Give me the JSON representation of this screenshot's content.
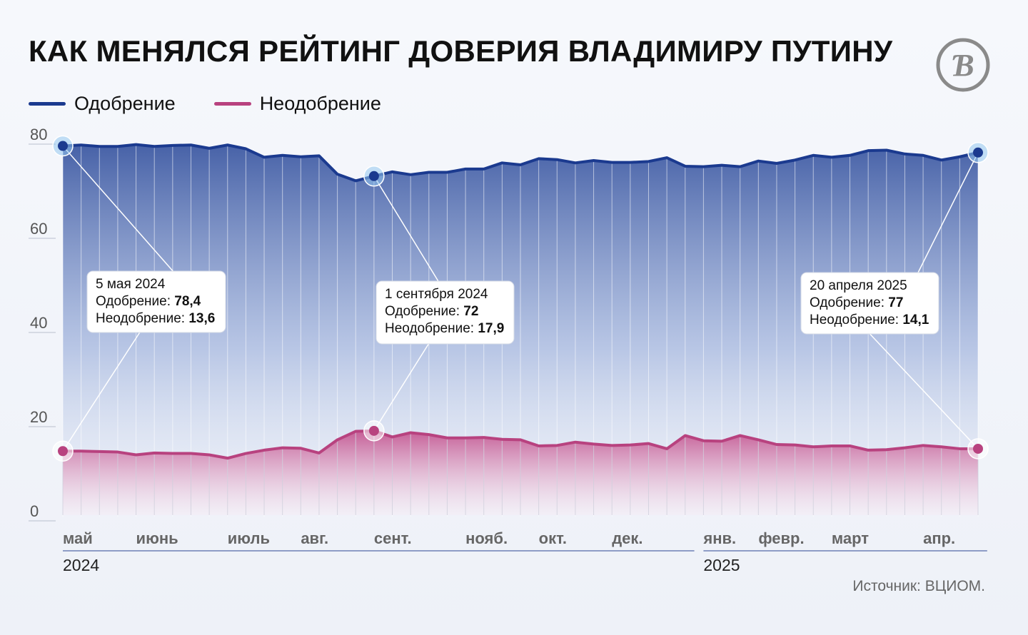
{
  "title": "КАК МЕНЯЛСЯ РЕЙТИНГ ДОВЕРИЯ ВЛАДИМИРУ ПУТИНУ",
  "logo_text": "Ɓ",
  "source": "Источник: ВЦИОМ.",
  "colors": {
    "approve": "#1b3a8f",
    "disapprove": "#b8427f",
    "grid": "#c9cfdc",
    "year_line": "#6f7fb5"
  },
  "chart_data": {
    "type": "area",
    "ylim": [
      0,
      80
    ],
    "yticks": [
      "0",
      "20",
      "40",
      "60",
      "80"
    ],
    "x_count": 51,
    "series": [
      {
        "name": "Одобрение",
        "values": [
          78.4,
          78.6,
          78.3,
          78.3,
          78.7,
          78.3,
          78.5,
          78.6,
          77.9,
          78.6,
          77.8,
          76.0,
          76.4,
          76.1,
          76.3,
          72.4,
          71.0,
          72.0,
          72.9,
          72.3,
          72.8,
          72.8,
          73.5,
          73.5,
          74.8,
          74.4,
          75.7,
          75.5,
          74.8,
          75.3,
          74.9,
          74.9,
          75.1,
          75.9,
          74.1,
          74.0,
          74.3,
          74.0,
          75.2,
          74.7,
          75.4,
          76.4,
          76.0,
          76.4,
          77.4,
          77.5,
          76.7,
          76.4,
          75.4,
          76.1,
          77.0
        ]
      },
      {
        "name": "Неодобрение",
        "values": [
          13.6,
          13.6,
          13.5,
          13.4,
          12.8,
          13.2,
          13.1,
          13.1,
          12.8,
          12.1,
          13.1,
          13.8,
          14.3,
          14.2,
          13.2,
          16.0,
          17.8,
          17.9,
          16.6,
          17.5,
          17.1,
          16.4,
          16.4,
          16.5,
          16.1,
          16.0,
          14.7,
          14.8,
          15.5,
          15.1,
          14.8,
          14.9,
          15.2,
          14.1,
          16.9,
          15.8,
          15.7,
          16.9,
          16.0,
          15.0,
          14.9,
          14.5,
          14.7,
          14.7,
          13.8,
          13.9,
          14.3,
          14.8,
          14.5,
          14.1,
          14.1
        ]
      }
    ],
    "months": [
      {
        "label": "май",
        "index": 0
      },
      {
        "label": "июнь",
        "index": 4
      },
      {
        "label": "июль",
        "index": 9
      },
      {
        "label": "авг.",
        "index": 13
      },
      {
        "label": "сент.",
        "index": 17
      },
      {
        "label": "нояб.",
        "index": 22
      },
      {
        "label": "окт.",
        "index": 26
      },
      {
        "label": "дек.",
        "index": 30
      },
      {
        "label": "янв.",
        "index": 35
      },
      {
        "label": "февр.",
        "index": 38
      },
      {
        "label": "март",
        "index": 42
      },
      {
        "label": "апр.",
        "index": 47
      }
    ],
    "years": [
      {
        "label": "2024",
        "from_index": 0,
        "to_index": 34
      },
      {
        "label": "2025",
        "from_index": 35,
        "to_index": 50
      }
    ],
    "annotations": [
      {
        "index": 0,
        "date": "5 мая 2024",
        "approve_label": "Одобрение: ",
        "approve_value": "78,4",
        "disapprove_label": "Неодобрение: ",
        "disapprove_value": "13,6",
        "placement": "left"
      },
      {
        "index": 17,
        "date": "1 сентября 2024",
        "approve_label": "Одобрение: ",
        "approve_value": "72",
        "disapprove_label": "Неодобрение: ",
        "disapprove_value": "17,9",
        "placement": "center"
      },
      {
        "index": 50,
        "date": "20 апреля 2025",
        "approve_label": "Одобрение: ",
        "approve_value": "77",
        "disapprove_label": "Неодобрение: ",
        "disapprove_value": "14,1",
        "placement": "right"
      }
    ]
  }
}
